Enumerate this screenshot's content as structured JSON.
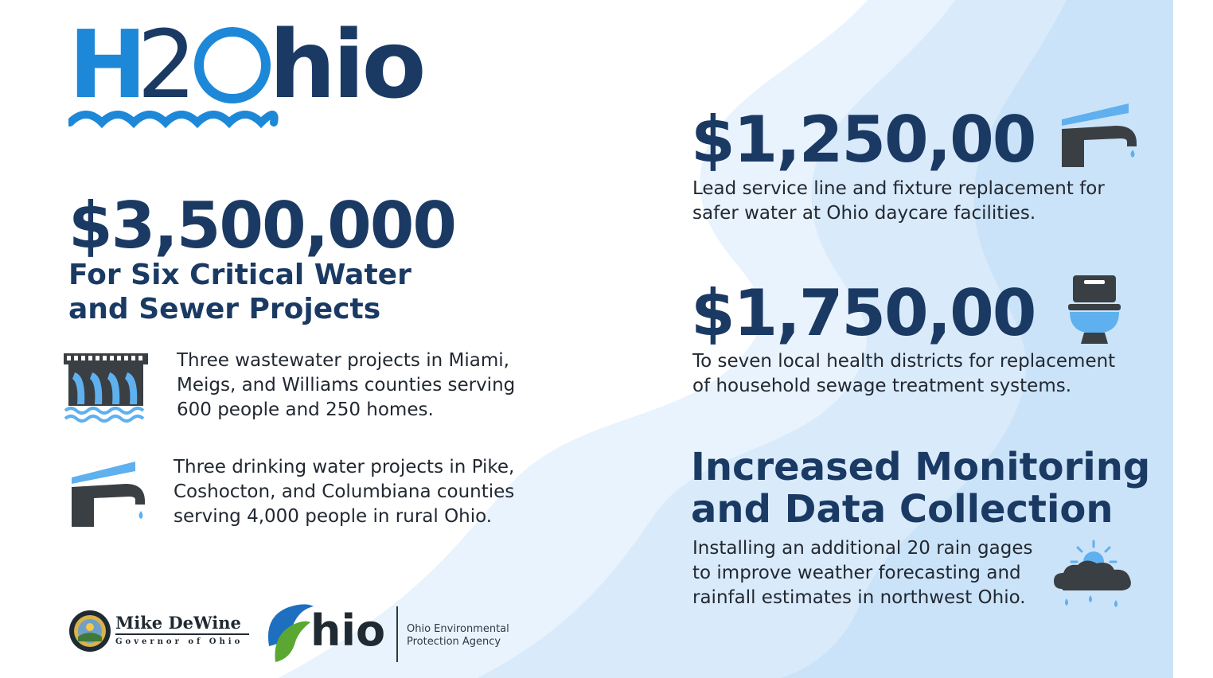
{
  "colors": {
    "navy": "#1a3a64",
    "blue": "#1e88d8",
    "light_blue": "#5fb0ee",
    "background_wave": "#dcecfb",
    "text": "#222831"
  },
  "logo": {
    "brand": "H2Ohio",
    "part_h": "H",
    "part_2": "2",
    "part_hio": "hio"
  },
  "left": {
    "amount": "$3,500,000",
    "headline_line1": "For Six Critical Water",
    "headline_line2": "and Sewer Projects",
    "items": [
      {
        "icon": "wastewater-outfall-icon",
        "lines": [
          "Three wastewater projects in Miami,",
          "Meigs, and Williams counties serving",
          "600 people and 250 homes."
        ]
      },
      {
        "icon": "faucet-icon",
        "lines": [
          "Three drinking water projects in Pike,",
          "Coshocton, and Columbiana counties",
          "serving 4,000 people in rural Ohio."
        ]
      }
    ]
  },
  "right": {
    "sections": [
      {
        "amount": "$1,250,00",
        "icon": "faucet-icon",
        "lines": [
          "Lead service line and fixture replacement for",
          "safer water at Ohio daycare facilities."
        ]
      },
      {
        "amount": "$1,750,00",
        "icon": "toilet-icon",
        "lines": [
          "To seven local health districts for replacement",
          "of household sewage treatment systems."
        ]
      },
      {
        "heading_line1": "Increased Monitoring",
        "heading_line2": "and Data Collection",
        "icon": "rain-cloud-sun-icon",
        "lines": [
          "Installing an additional 20 rain gages",
          "to improve weather forecasting and",
          "rainfall estimates in northwest Ohio."
        ]
      }
    ]
  },
  "footer": {
    "seal_icon": "ohio-seal-icon",
    "governor_name": "Mike DeWine",
    "governor_title": "Governor of Ohio",
    "ohio_logo_text": "hio",
    "ohio_logo_icon": "ohio-leaf-logo-icon",
    "epa_line1": "Ohio Environmental",
    "epa_line2": "Protection Agency"
  }
}
